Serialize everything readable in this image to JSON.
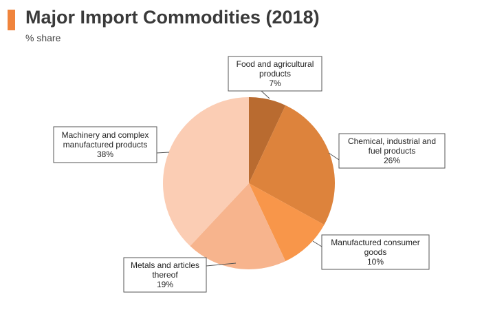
{
  "header": {
    "title": "Major Import Commodities (2018)",
    "subtitle": "% share",
    "accent_color": "#f0843c"
  },
  "chart_data": {
    "type": "pie",
    "title": "Major Import Commodities (2018)",
    "subtitle": "% share",
    "start": "12 o'clock",
    "direction": "clockwise",
    "slices": [
      {
        "label_lines": [
          "Food and agricultural",
          "products"
        ],
        "value": 7,
        "value_label": "7%",
        "color": "#b96b30"
      },
      {
        "label_lines": [
          "Chemical, industrial and",
          "fuel products"
        ],
        "value": 26,
        "value_label": "26%",
        "color": "#dd833c"
      },
      {
        "label_lines": [
          "Manufactured consumer",
          "goods"
        ],
        "value": 10,
        "value_label": "10%",
        "color": "#f8964a"
      },
      {
        "label_lines": [
          "Metals and articles",
          "thereof"
        ],
        "value": 19,
        "value_label": "19%",
        "color": "#f7b48d"
      },
      {
        "label_lines": [
          "Machinery and complex",
          "manufactured products"
        ],
        "value": 38,
        "value_label": "38%",
        "color": "#fbcdb4"
      }
    ]
  }
}
